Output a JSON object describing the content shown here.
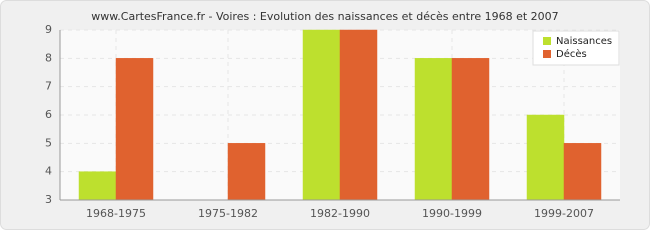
{
  "chart_data": {
    "type": "bar",
    "title": "www.CartesFrance.fr - Voires : Evolution des naissances et décès entre 1968 et 2007",
    "categories": [
      "1968-1975",
      "1975-1982",
      "1982-1990",
      "1990-1999",
      "1999-2007"
    ],
    "series": [
      {
        "name": "Naissances",
        "color": "#bde02e",
        "values": [
          4,
          3,
          9,
          8,
          6
        ]
      },
      {
        "name": "Décès",
        "color": "#e0622f",
        "values": [
          8,
          5,
          9,
          8,
          5
        ]
      }
    ],
    "ylim": [
      3,
      9
    ],
    "yticks": [
      3,
      4,
      5,
      6,
      7,
      8,
      9
    ],
    "grid": true,
    "legend": "top-right"
  }
}
